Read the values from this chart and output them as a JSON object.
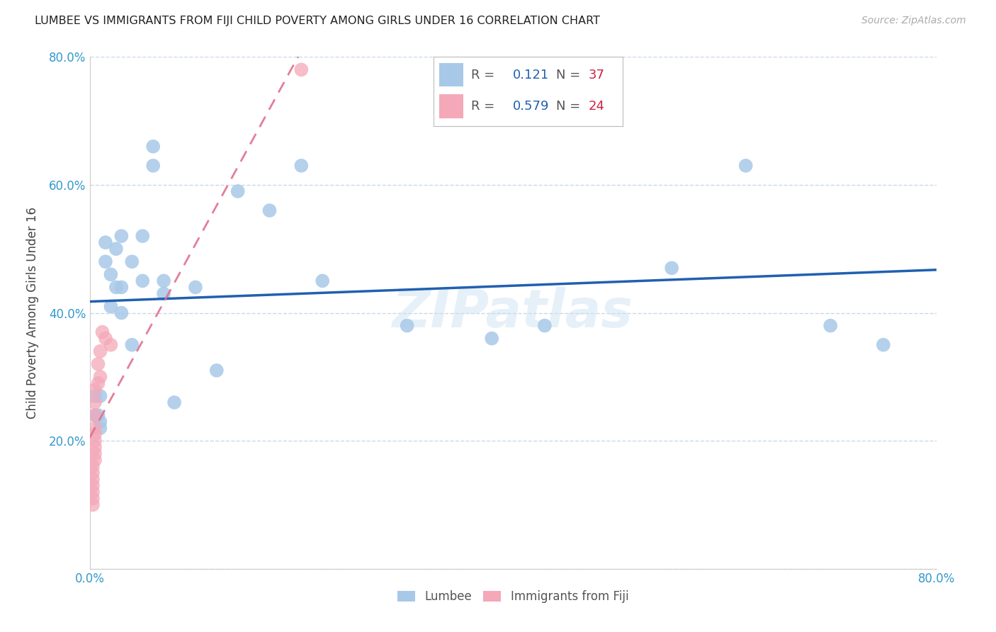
{
  "title": "LUMBEE VS IMMIGRANTS FROM FIJI CHILD POVERTY AMONG GIRLS UNDER 16 CORRELATION CHART",
  "source": "Source: ZipAtlas.com",
  "ylabel": "Child Poverty Among Girls Under 16",
  "xlim": [
    0,
    0.8
  ],
  "ylim": [
    0,
    0.8
  ],
  "lumbee_R": "0.121",
  "lumbee_N": "37",
  "fiji_R": "0.579",
  "fiji_N": "24",
  "lumbee_color": "#a8c8e8",
  "fiji_color": "#f4a8b8",
  "lumbee_line_color": "#2060b0",
  "fiji_line_color": "#e07090",
  "background_color": "#ffffff",
  "grid_color": "#c8d8ea",
  "watermark": "ZIPatlas",
  "lumbee_x": [
    0.005,
    0.005,
    0.008,
    0.01,
    0.01,
    0.01,
    0.015,
    0.015,
    0.02,
    0.02,
    0.025,
    0.025,
    0.03,
    0.03,
    0.03,
    0.04,
    0.04,
    0.05,
    0.05,
    0.06,
    0.06,
    0.07,
    0.07,
    0.08,
    0.1,
    0.12,
    0.14,
    0.17,
    0.2,
    0.22,
    0.3,
    0.38,
    0.43,
    0.55,
    0.62,
    0.7,
    0.75
  ],
  "lumbee_y": [
    0.27,
    0.24,
    0.24,
    0.27,
    0.22,
    0.23,
    0.48,
    0.51,
    0.41,
    0.46,
    0.44,
    0.5,
    0.44,
    0.52,
    0.4,
    0.48,
    0.35,
    0.45,
    0.52,
    0.63,
    0.66,
    0.43,
    0.45,
    0.26,
    0.44,
    0.31,
    0.59,
    0.56,
    0.63,
    0.45,
    0.38,
    0.36,
    0.38,
    0.47,
    0.63,
    0.38,
    0.35
  ],
  "fiji_x": [
    0.003,
    0.003,
    0.003,
    0.003,
    0.003,
    0.003,
    0.003,
    0.005,
    0.005,
    0.005,
    0.005,
    0.005,
    0.005,
    0.005,
    0.005,
    0.005,
    0.008,
    0.008,
    0.01,
    0.01,
    0.012,
    0.015,
    0.02,
    0.2
  ],
  "fiji_y": [
    0.1,
    0.11,
    0.12,
    0.13,
    0.14,
    0.15,
    0.16,
    0.17,
    0.18,
    0.19,
    0.2,
    0.21,
    0.22,
    0.24,
    0.26,
    0.28,
    0.29,
    0.32,
    0.3,
    0.34,
    0.37,
    0.36,
    0.35,
    0.78
  ]
}
